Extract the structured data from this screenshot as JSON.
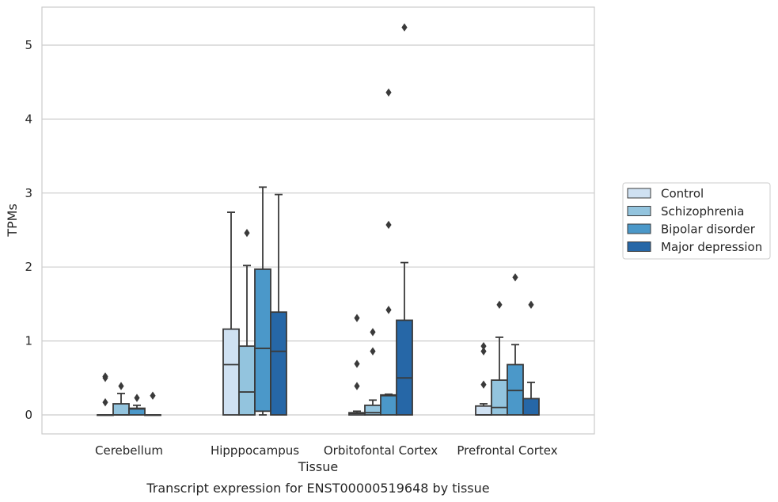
{
  "chart_data": {
    "type": "box",
    "title": "",
    "caption": "Transcript expression for ENST00000519648 by tissue",
    "xlabel": "Tissue",
    "ylabel": "TPMs",
    "ylim": [
      -0.25,
      5.5
    ],
    "yticks": [
      0,
      1,
      2,
      3,
      4,
      5
    ],
    "grid": "horizontal",
    "legend_position": "right",
    "categories": [
      "Cerebellum",
      "Hipppocampus",
      "Orbitofontal Cortex",
      "Prefrontal Cortex"
    ],
    "series": [
      {
        "name": "Control",
        "color": "#cfe1f2",
        "boxes": [
          {
            "whisker_low": 0,
            "q1": 0,
            "median": 0,
            "q3": 0,
            "whisker_high": 0,
            "outliers": [
              0.17,
              0.5,
              0.52
            ]
          },
          {
            "whisker_low": 0,
            "q1": 0,
            "median": 0.68,
            "q3": 1.16,
            "whisker_high": 2.74,
            "outliers": []
          },
          {
            "whisker_low": 0,
            "q1": 0,
            "median": 0.02,
            "q3": 0.03,
            "whisker_high": 0.05,
            "outliers": [
              0.39,
              0.69,
              1.31
            ]
          },
          {
            "whisker_low": 0,
            "q1": 0,
            "median": 0,
            "q3": 0.12,
            "whisker_high": 0.15,
            "outliers": [
              0.41,
              0.86,
              0.93
            ]
          }
        ]
      },
      {
        "name": "Schizophrenia",
        "color": "#93c4de",
        "boxes": [
          {
            "whisker_low": 0,
            "q1": 0,
            "median": 0,
            "q3": 0.15,
            "whisker_high": 0.29,
            "outliers": [
              0.39
            ]
          },
          {
            "whisker_low": 0,
            "q1": 0,
            "median": 0.31,
            "q3": 0.93,
            "whisker_high": 2.02,
            "outliers": [
              2.46
            ]
          },
          {
            "whisker_low": 0,
            "q1": 0,
            "median": 0.03,
            "q3": 0.13,
            "whisker_high": 0.2,
            "outliers": [
              0.86,
              1.12
            ]
          },
          {
            "whisker_low": 0,
            "q1": 0,
            "median": 0.1,
            "q3": 0.47,
            "whisker_high": 1.05,
            "outliers": [
              1.49
            ]
          }
        ]
      },
      {
        "name": "Bipolar disorder",
        "color": "#4b98c9",
        "boxes": [
          {
            "whisker_low": 0,
            "q1": 0,
            "median": 0.08,
            "q3": 0.09,
            "whisker_high": 0.13,
            "outliers": [
              0.23
            ]
          },
          {
            "whisker_low": 0,
            "q1": 0.05,
            "median": 0.9,
            "q3": 1.97,
            "whisker_high": 3.08,
            "outliers": []
          },
          {
            "whisker_low": 0,
            "q1": 0,
            "median": 0.26,
            "q3": 0.27,
            "whisker_high": 0.28,
            "outliers": [
              1.42,
              2.57,
              4.36
            ]
          },
          {
            "whisker_low": 0,
            "q1": 0,
            "median": 0.33,
            "q3": 0.68,
            "whisker_high": 0.95,
            "outliers": [
              1.86
            ]
          }
        ]
      },
      {
        "name": "Major depression",
        "color": "#2667a7",
        "boxes": [
          {
            "whisker_low": 0,
            "q1": 0,
            "median": 0,
            "q3": 0,
            "whisker_high": 0,
            "outliers": [
              0.26
            ]
          },
          {
            "whisker_low": 0,
            "q1": 0,
            "median": 0.86,
            "q3": 1.39,
            "whisker_high": 2.98,
            "outliers": []
          },
          {
            "whisker_low": 0,
            "q1": 0,
            "median": 0.5,
            "q3": 1.28,
            "whisker_high": 2.06,
            "outliers": [
              5.24
            ]
          },
          {
            "whisker_low": 0,
            "q1": 0,
            "median": 0,
            "q3": 0.22,
            "whisker_high": 0.44,
            "outliers": [
              1.49
            ]
          }
        ]
      }
    ]
  }
}
